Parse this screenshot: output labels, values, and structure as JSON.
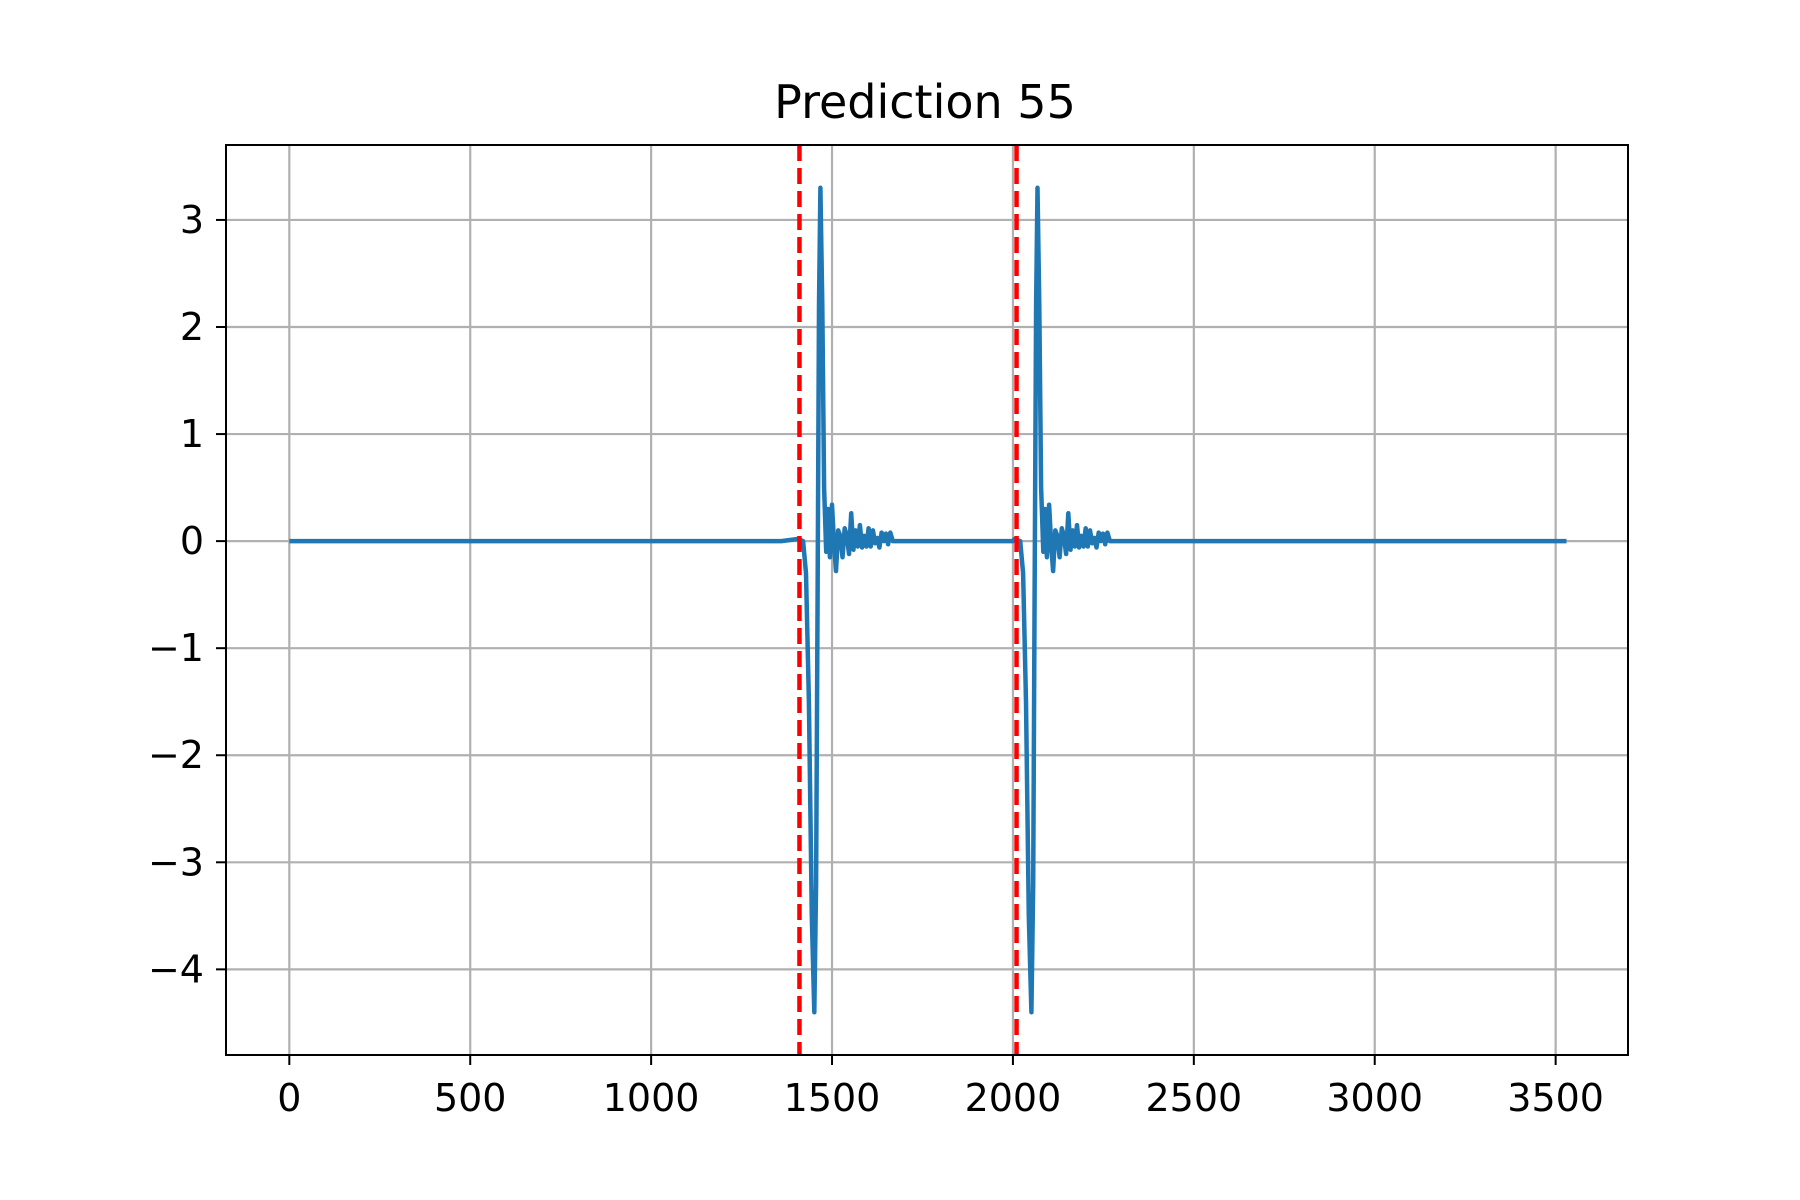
{
  "chart_data": {
    "type": "line",
    "title": "Prediction 55",
    "xlabel": "",
    "ylabel": "",
    "xlim": [
      -175,
      3700
    ],
    "ylim": [
      -4.8,
      3.7
    ],
    "xticks": [
      0,
      500,
      1000,
      1500,
      2000,
      2500,
      3000,
      3500
    ],
    "yticks": [
      3,
      2,
      1,
      0,
      -1,
      -2,
      -3,
      -4
    ],
    "xtick_labels": [
      "0",
      "500",
      "1000",
      "1500",
      "2000",
      "2500",
      "3000",
      "3500"
    ],
    "ytick_labels": [
      "3",
      "2",
      "1",
      "0",
      "−1",
      "−2",
      "−3",
      "−4"
    ],
    "grid": true,
    "legend": "none",
    "series": [
      {
        "color": "#1f77b4",
        "points": [
          [
            0,
            0
          ],
          [
            1360,
            0
          ],
          [
            1405,
            0.02
          ],
          [
            1420,
            0
          ],
          [
            1428,
            -0.3
          ],
          [
            1436,
            -1.5
          ],
          [
            1444,
            -3.5
          ],
          [
            1451,
            -4.4
          ],
          [
            1456,
            -3.2
          ],
          [
            1460,
            -0.5
          ],
          [
            1464,
            2.2
          ],
          [
            1468,
            3.3
          ],
          [
            1473,
            2.2
          ],
          [
            1478,
            0.5
          ],
          [
            1484,
            -0.1
          ],
          [
            1489,
            0.3
          ],
          [
            1494,
            -0.15
          ],
          [
            1500,
            0.34
          ],
          [
            1506,
            -0.05
          ],
          [
            1511,
            -0.28
          ],
          [
            1517,
            0.1
          ],
          [
            1523,
            0.05
          ],
          [
            1529,
            -0.15
          ],
          [
            1535,
            0.12
          ],
          [
            1541,
            0.05
          ],
          [
            1547,
            -0.12
          ],
          [
            1553,
            0.26
          ],
          [
            1559,
            -0.08
          ],
          [
            1565,
            0.1
          ],
          [
            1571,
            -0.05
          ],
          [
            1577,
            0.15
          ],
          [
            1583,
            -0.06
          ],
          [
            1589,
            0.05
          ],
          [
            1595,
            -0.05
          ],
          [
            1601,
            0.12
          ],
          [
            1607,
            -0.05
          ],
          [
            1613,
            0.1
          ],
          [
            1619,
            -0.02
          ],
          [
            1625,
            0.03
          ],
          [
            1631,
            -0.06
          ],
          [
            1637,
            0.08
          ],
          [
            1643,
            0
          ],
          [
            1649,
            0.07
          ],
          [
            1655,
            -0.03
          ],
          [
            1661,
            0.08
          ],
          [
            1668,
            0
          ],
          [
            2000,
            0
          ],
          [
            2005,
            0.02
          ],
          [
            2020,
            0
          ],
          [
            2028,
            -0.3
          ],
          [
            2036,
            -1.5
          ],
          [
            2044,
            -3.5
          ],
          [
            2051,
            -4.4
          ],
          [
            2056,
            -3.2
          ],
          [
            2060,
            -0.5
          ],
          [
            2064,
            2.2
          ],
          [
            2068,
            3.3
          ],
          [
            2073,
            2.2
          ],
          [
            2078,
            0.5
          ],
          [
            2084,
            -0.1
          ],
          [
            2089,
            0.3
          ],
          [
            2094,
            -0.15
          ],
          [
            2100,
            0.34
          ],
          [
            2106,
            -0.05
          ],
          [
            2111,
            -0.28
          ],
          [
            2117,
            0.1
          ],
          [
            2123,
            0.05
          ],
          [
            2129,
            -0.15
          ],
          [
            2135,
            0.12
          ],
          [
            2141,
            0.05
          ],
          [
            2147,
            -0.12
          ],
          [
            2153,
            0.26
          ],
          [
            2159,
            -0.08
          ],
          [
            2165,
            0.1
          ],
          [
            2171,
            -0.05
          ],
          [
            2177,
            0.15
          ],
          [
            2183,
            -0.06
          ],
          [
            2189,
            0.05
          ],
          [
            2195,
            -0.05
          ],
          [
            2201,
            0.12
          ],
          [
            2207,
            -0.05
          ],
          [
            2213,
            0.1
          ],
          [
            2219,
            -0.02
          ],
          [
            2225,
            0.03
          ],
          [
            2231,
            -0.06
          ],
          [
            2237,
            0.08
          ],
          [
            2243,
            0
          ],
          [
            2249,
            0.07
          ],
          [
            2255,
            -0.03
          ],
          [
            2261,
            0.08
          ],
          [
            2268,
            0
          ],
          [
            3530,
            0
          ]
        ]
      }
    ],
    "vlines": [
      {
        "x": 1410,
        "color": "#ff0000",
        "style": "dashed"
      },
      {
        "x": 2010,
        "color": "#ff0000",
        "style": "dashed"
      }
    ]
  }
}
